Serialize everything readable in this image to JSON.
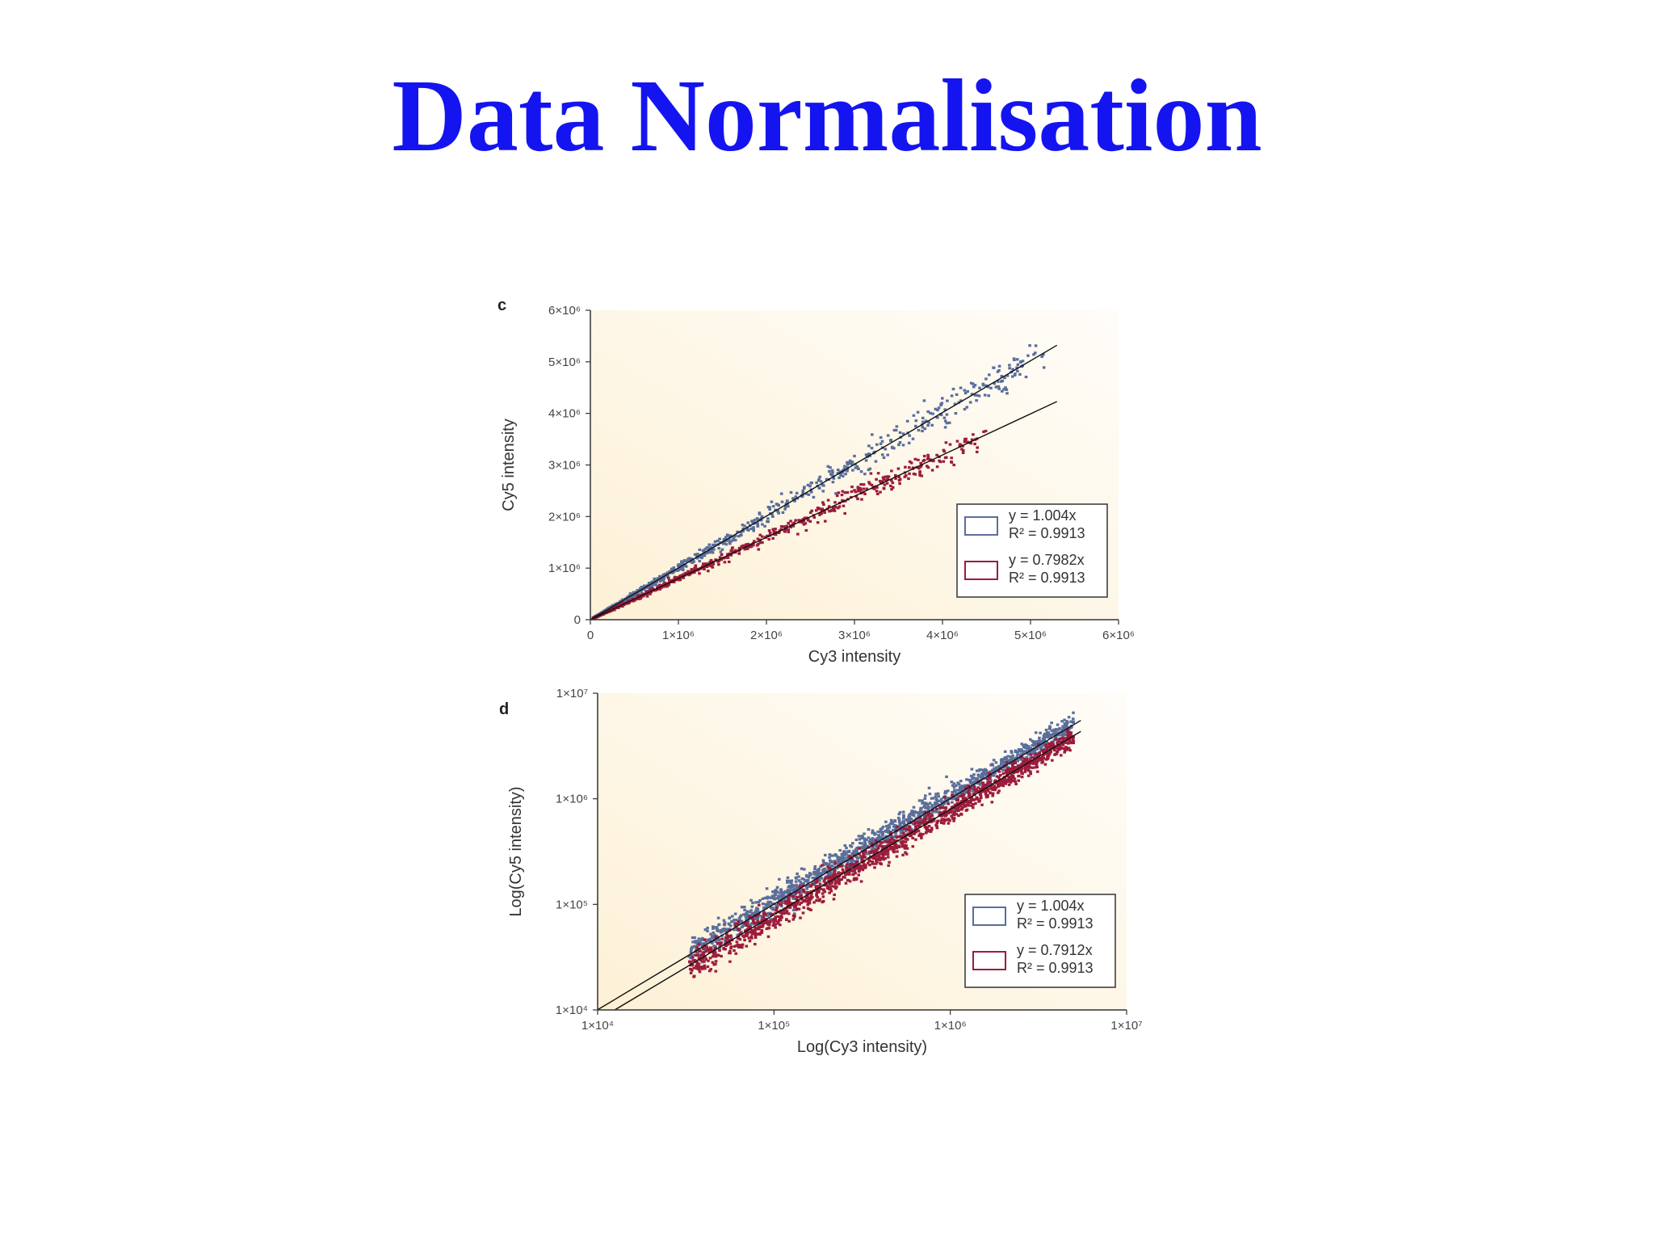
{
  "slide": {
    "title": "Data Normalisation"
  },
  "colors": {
    "title": "#1414f0",
    "series_blue": "#5a6e9c",
    "series_red": "#9c1c3c",
    "plot_bg_start": "#fdf3dc",
    "plot_bg_end": "#fffdf8",
    "axis": "#333333"
  },
  "chart_data": [
    {
      "panel": "c",
      "type": "scatter",
      "scale": "linear",
      "xlabel": "Cy3 intensity",
      "ylabel": "Cy5 intensity",
      "xlim": [
        0,
        6000000
      ],
      "ylim": [
        0,
        6000000
      ],
      "x_ticks": [
        "0",
        "1×10⁶",
        "2×10⁶",
        "3×10⁶",
        "4×10⁶",
        "5×10⁶",
        "6×10⁶"
      ],
      "y_ticks": [
        "0",
        "1×10⁶",
        "2×10⁶",
        "3×10⁶",
        "4×10⁶",
        "5×10⁶",
        "6×10⁶"
      ],
      "legend_position": "bottom-right",
      "series": [
        {
          "color_key": "series_blue",
          "fit": "y = 1.004x",
          "slope": 1.004,
          "r2": "R² = 0.9913",
          "fit_x_range": [
            0,
            5300000
          ],
          "approx_x_range": [
            30000,
            5200000
          ]
        },
        {
          "color_key": "series_red",
          "fit": "y = 0.7982x",
          "slope": 0.7982,
          "r2": "R² = 0.9913",
          "fit_x_range": [
            0,
            5300000
          ],
          "approx_x_range": [
            30000,
            4500000
          ]
        }
      ]
    },
    {
      "panel": "d",
      "type": "scatter",
      "scale": "log",
      "xlabel": "Log(Cy3 intensity)",
      "ylabel": "Log(Cy5 intensity)",
      "xlim": [
        10000,
        10000000
      ],
      "ylim": [
        10000,
        10000000
      ],
      "x_ticks": [
        "1×10⁴",
        "1×10⁵",
        "1×10⁶",
        "1×10⁷"
      ],
      "y_ticks": [
        "1×10⁴",
        "1×10⁵",
        "1×10⁶",
        "1×10⁷"
      ],
      "legend_position": "bottom-right",
      "series": [
        {
          "color_key": "series_blue",
          "fit": "y = 1.004x",
          "slope": 1.004,
          "r2": "R² = 0.9913",
          "fit_x_range": [
            10000,
            5500000
          ],
          "approx_x_range": [
            33000,
            5000000
          ]
        },
        {
          "color_key": "series_red",
          "fit": "y = 0.7912x",
          "slope": 0.7912,
          "r2": "R² = 0.9913",
          "fit_x_range": [
            12500,
            5500000
          ],
          "approx_x_range": [
            33000,
            5000000
          ]
        }
      ]
    }
  ]
}
